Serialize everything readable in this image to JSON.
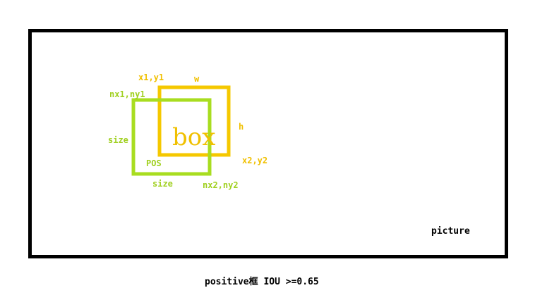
{
  "colors": {
    "frame": "#000000",
    "gt_box": "#f5c800",
    "pos_box": "#a8dd20",
    "gt_text": "#f0c000",
    "pos_text": "#a0d020"
  },
  "labels": {
    "x1y1": "x1,y1",
    "w": "w",
    "h": "h",
    "x2y2": "x2,y2",
    "box": "box",
    "nx1ny1": "nx1,ny1",
    "size_left": "size",
    "size_bottom": "size",
    "pos": "POS",
    "nx2ny2": "nx2,ny2",
    "picture": "picture"
  },
  "caption": "positive框  IOU >=0.65"
}
